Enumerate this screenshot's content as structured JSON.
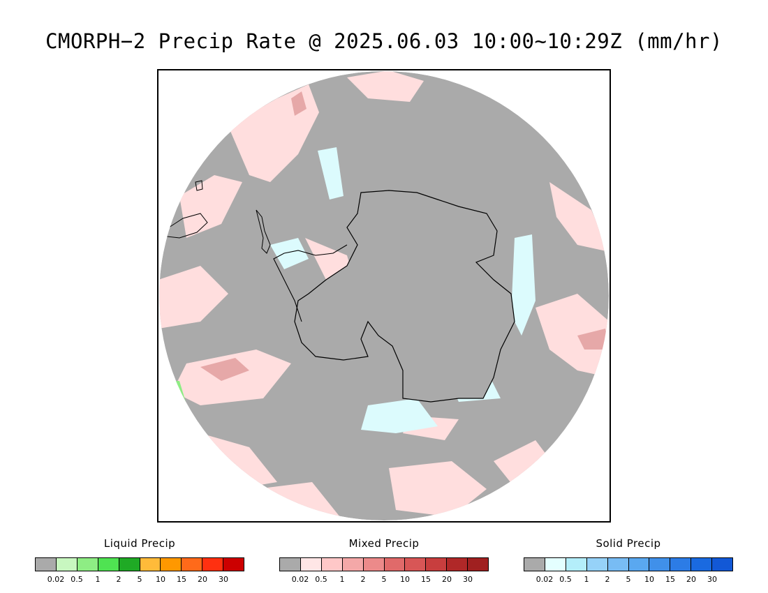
{
  "title": "CMORPH−2 Precip Rate @ 2025.06.03 10:00~10:29Z (mm/hr)",
  "map": {
    "projection": "south-polar-stereographic",
    "background_color": "#aaaaaa",
    "outline_color": "#000000"
  },
  "legends": [
    {
      "title": "Liquid Precip",
      "colors": [
        "#aaaaaa",
        "#c8f7c0",
        "#8eed84",
        "#4fe352",
        "#1faa25",
        "#ffbb3a",
        "#ff9800",
        "#ff6a1a",
        "#ff3010",
        "#cc0000"
      ],
      "ticks": [
        "0.02",
        "0.5",
        "1",
        "2",
        "5",
        "10",
        "15",
        "20",
        "30"
      ]
    },
    {
      "title": "Mixed Precip",
      "colors": [
        "#aaaaaa",
        "#ffe6e6",
        "#ffc8c8",
        "#f4a8a8",
        "#ec8a8a",
        "#e06a6a",
        "#d85656",
        "#c83e3e",
        "#b02828",
        "#a02020"
      ],
      "ticks": [
        "0.02",
        "0.5",
        "1",
        "2",
        "5",
        "10",
        "15",
        "20",
        "30"
      ]
    },
    {
      "title": "Solid Precip",
      "colors": [
        "#aaaaaa",
        "#e4ffff",
        "#b4eefa",
        "#96d2f8",
        "#78bcf4",
        "#5aa8f0",
        "#4090ea",
        "#2c7ce6",
        "#1a6ae0",
        "#1258d6"
      ],
      "ticks": [
        "0.02",
        "0.5",
        "1",
        "2",
        "5",
        "10",
        "15",
        "20",
        "30"
      ]
    }
  ]
}
